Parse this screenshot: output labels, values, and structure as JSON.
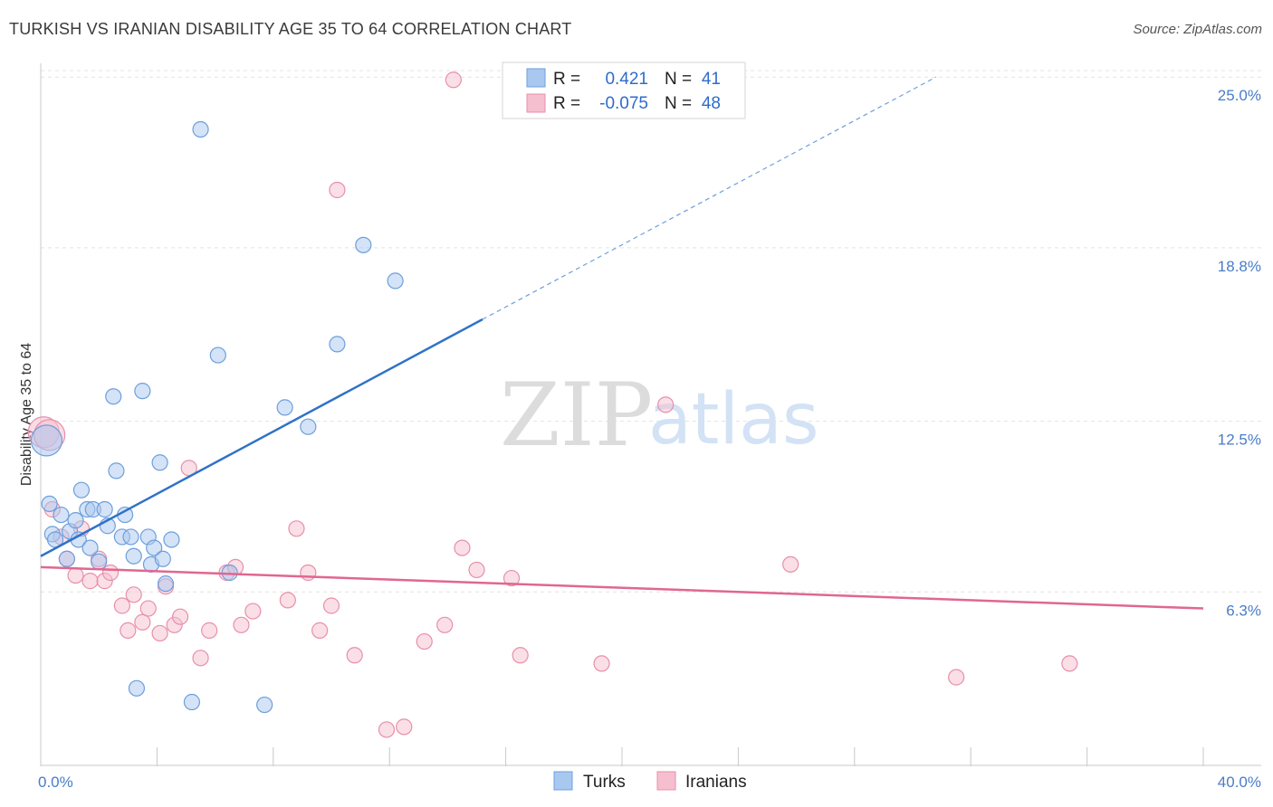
{
  "title": "TURKISH VS IRANIAN DISABILITY AGE 35 TO 64 CORRELATION CHART",
  "source": "Source: ZipAtlas.com",
  "watermark": {
    "zip": "ZIP",
    "atlas": "atlas"
  },
  "legend": {
    "r_label": "R =",
    "n_label": "N =",
    "turks": {
      "r": "0.421",
      "n": "41"
    },
    "iranians": {
      "r": "-0.075",
      "n": "48"
    }
  },
  "colors": {
    "turks_fill": "#a9c8f0",
    "turks_stroke": "#6d9fdc",
    "turks_line": "#2f72c8",
    "iranians_fill": "#f6bfd0",
    "iranians_stroke": "#e88fab",
    "iranians_line": "#e0678f",
    "axis_text": "#4a7cc7",
    "grid": "#e3e3e3"
  },
  "chart_data": {
    "type": "scatter",
    "xlabel": "",
    "ylabel": "Disability Age 35 to 64",
    "xlim": [
      0,
      40
    ],
    "ylim": [
      0,
      25.5
    ],
    "x_tick_labels": [
      {
        "value": 0,
        "label": "0.0%"
      },
      {
        "value": 40,
        "label": "40.0%"
      }
    ],
    "y_tick_labels": [
      {
        "value": 6.3,
        "label": "6.3%"
      },
      {
        "value": 12.5,
        "label": "12.5%"
      },
      {
        "value": 18.8,
        "label": "18.8%"
      },
      {
        "value": 25.0,
        "label": "25.0%"
      }
    ],
    "grid": true,
    "legend_position": "top-center",
    "series": [
      {
        "name": "Turks",
        "r": 0.421,
        "n": 41,
        "trend": {
          "x0": 0,
          "y0": 7.6,
          "x1": 15.2,
          "y1": 16.2,
          "dash_to_x": 30.8,
          "dash_to_y": 25.0
        },
        "points": [
          [
            0.2,
            11.8
          ],
          [
            0.3,
            9.5
          ],
          [
            0.4,
            8.4
          ],
          [
            0.5,
            8.2
          ],
          [
            0.7,
            9.1
          ],
          [
            0.9,
            7.5
          ],
          [
            1.0,
            8.5
          ],
          [
            1.2,
            8.9
          ],
          [
            1.3,
            8.2
          ],
          [
            1.4,
            10.0
          ],
          [
            1.6,
            9.3
          ],
          [
            1.7,
            7.9
          ],
          [
            1.8,
            9.3
          ],
          [
            2.0,
            7.4
          ],
          [
            2.2,
            9.3
          ],
          [
            2.3,
            8.7
          ],
          [
            2.5,
            13.4
          ],
          [
            2.6,
            10.7
          ],
          [
            2.8,
            8.3
          ],
          [
            2.9,
            9.1
          ],
          [
            3.1,
            8.3
          ],
          [
            3.2,
            7.6
          ],
          [
            3.3,
            2.8
          ],
          [
            3.5,
            13.6
          ],
          [
            3.7,
            8.3
          ],
          [
            3.8,
            7.3
          ],
          [
            3.9,
            7.9
          ],
          [
            4.1,
            11.0
          ],
          [
            4.2,
            7.5
          ],
          [
            4.3,
            6.6
          ],
          [
            4.5,
            8.2
          ],
          [
            5.2,
            2.3
          ],
          [
            5.5,
            23.1
          ],
          [
            6.1,
            14.9
          ],
          [
            6.5,
            7.0
          ],
          [
            7.7,
            2.2
          ],
          [
            8.4,
            13.0
          ],
          [
            9.2,
            12.3
          ],
          [
            10.2,
            15.3
          ],
          [
            11.1,
            18.9
          ],
          [
            12.2,
            17.6
          ]
        ]
      },
      {
        "name": "Iranians",
        "r": -0.075,
        "n": 48,
        "trend": {
          "x0": 0,
          "y0": 7.2,
          "x1": 40,
          "y1": 5.7
        },
        "points": [
          [
            0.1,
            12.1
          ],
          [
            0.4,
            9.3
          ],
          [
            0.7,
            8.3
          ],
          [
            0.9,
            7.5
          ],
          [
            1.2,
            6.9
          ],
          [
            1.4,
            8.6
          ],
          [
            1.7,
            6.7
          ],
          [
            2.0,
            7.5
          ],
          [
            2.2,
            6.7
          ],
          [
            2.4,
            7.0
          ],
          [
            2.8,
            5.8
          ],
          [
            3.0,
            4.9
          ],
          [
            3.2,
            6.2
          ],
          [
            3.5,
            5.2
          ],
          [
            3.7,
            5.7
          ],
          [
            4.1,
            4.8
          ],
          [
            4.3,
            6.5
          ],
          [
            4.6,
            5.1
          ],
          [
            4.8,
            5.4
          ],
          [
            5.1,
            10.8
          ],
          [
            5.5,
            3.9
          ],
          [
            5.8,
            4.9
          ],
          [
            6.4,
            7.0
          ],
          [
            6.7,
            7.2
          ],
          [
            6.9,
            5.1
          ],
          [
            7.3,
            5.6
          ],
          [
            8.5,
            6.0
          ],
          [
            8.8,
            8.6
          ],
          [
            9.2,
            7.0
          ],
          [
            9.6,
            4.9
          ],
          [
            10.0,
            5.8
          ],
          [
            10.2,
            20.9
          ],
          [
            10.8,
            4.0
          ],
          [
            11.9,
            1.3
          ],
          [
            12.5,
            1.4
          ],
          [
            13.2,
            4.5
          ],
          [
            13.9,
            5.1
          ],
          [
            14.2,
            24.9
          ],
          [
            14.5,
            7.9
          ],
          [
            15.0,
            7.1
          ],
          [
            16.2,
            6.8
          ],
          [
            16.5,
            4.0
          ],
          [
            19.3,
            3.7
          ],
          [
            21.5,
            13.1
          ],
          [
            25.8,
            7.3
          ],
          [
            31.5,
            3.2
          ],
          [
            35.4,
            3.7
          ],
          [
            0.3,
            12.0
          ]
        ]
      }
    ]
  },
  "bottom_legend": {
    "turks": "Turks",
    "iranians": "Iranians"
  }
}
